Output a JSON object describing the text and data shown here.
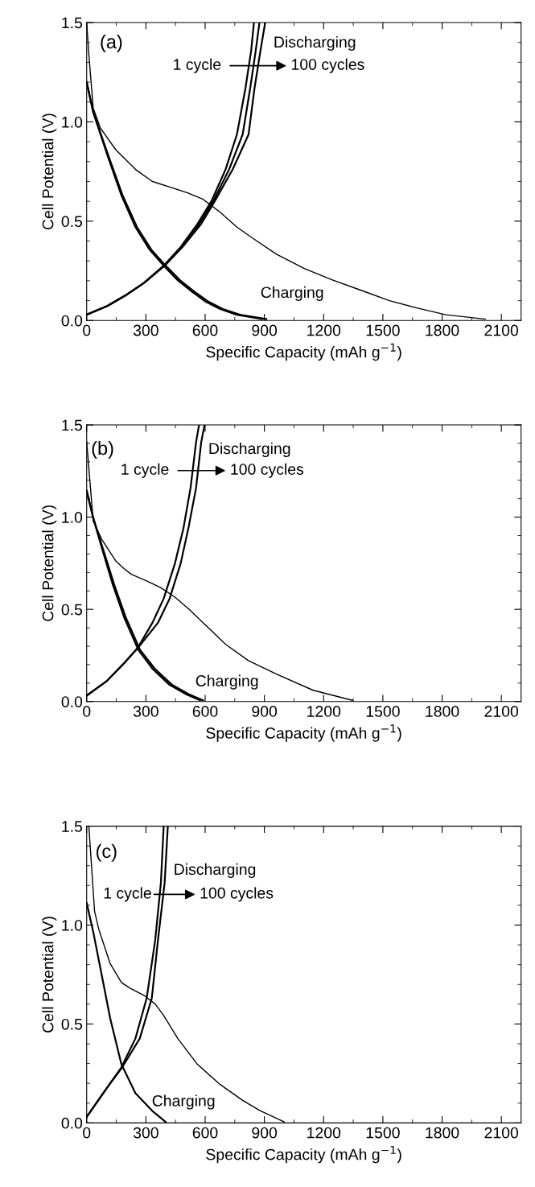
{
  "chart_data": [
    {
      "type": "line",
      "xlabel": "Specific Capacity (mAh g$^{−1}$)",
      "ylabel": "Cell Potential (V)",
      "annotations": [
        "(a)",
        "Discharging",
        "1 cycle",
        "100 cycles",
        "Charging"
      ],
      "xlim": [
        0,
        2200
      ],
      "ylim": [
        0,
        1.5
      ],
      "xticks": [
        0,
        300,
        600,
        900,
        1200,
        1500,
        1800,
        2100
      ],
      "yticks": [
        {
          "value": 0,
          "label": "0.0"
        },
        {
          "value": 0.5,
          "label": "0.5"
        },
        {
          "value": 1.0,
          "label": "1.0"
        },
        {
          "value": 1.5,
          "label": "1.5"
        }
      ],
      "grid": false,
      "marker": "none",
      "line_style": "solid",
      "series": [
        {
          "color": "#000000",
          "x": [
            0,
            11,
            33,
            69,
            147,
            254,
            333,
            433,
            511,
            590,
            676,
            761,
            847,
            961,
            1104,
            1247,
            1390,
            1533,
            1676,
            1819,
            2019
          ],
          "values": [
            1.5,
            1.34,
            1.07,
            0.97,
            0.86,
            0.755,
            0.7,
            0.668,
            0.643,
            0.61,
            0.545,
            0.47,
            0.41,
            0.334,
            0.261,
            0.203,
            0.152,
            0.1,
            0.062,
            0.029,
            0.007
          ]
        },
        {
          "color": "#000000",
          "x": [
            0,
            33,
            104,
            176,
            247,
            319,
            390,
            461,
            533,
            604,
            676,
            761,
            890
          ],
          "values": [
            1.2,
            1.05,
            0.835,
            0.63,
            0.47,
            0.356,
            0.276,
            0.203,
            0.145,
            0.094,
            0.058,
            0.029,
            0.007
          ]
        },
        {
          "color": "#000000",
          "x": [
            0,
            33,
            108,
            182,
            255,
            328,
            400,
            472,
            545,
            618,
            690,
            776,
            910
          ],
          "values": [
            1.2,
            1.05,
            0.835,
            0.63,
            0.47,
            0.356,
            0.276,
            0.203,
            0.145,
            0.094,
            0.058,
            0.029,
            0.007
          ]
        },
        {
          "color": "#000000",
          "x": [
            0,
            104,
            204,
            290,
            390,
            476,
            561,
            633,
            704,
            761,
            804,
            833,
            847
          ],
          "values": [
            0.029,
            0.073,
            0.131,
            0.189,
            0.276,
            0.37,
            0.486,
            0.603,
            0.762,
            0.937,
            1.169,
            1.358,
            1.5
          ]
        },
        {
          "color": "#000000",
          "x": [
            0,
            104,
            204,
            290,
            392,
            480,
            570,
            642,
            722,
            790,
            828,
            856,
            875
          ],
          "values": [
            0.029,
            0.073,
            0.131,
            0.189,
            0.276,
            0.37,
            0.486,
            0.603,
            0.762,
            0.937,
            1.169,
            1.358,
            1.5
          ]
        },
        {
          "color": "#000000",
          "x": [
            0,
            104,
            204,
            290,
            395,
            485,
            580,
            650,
            740,
            820,
            850,
            880,
            904
          ],
          "values": [
            0.029,
            0.073,
            0.131,
            0.189,
            0.276,
            0.37,
            0.486,
            0.603,
            0.762,
            0.937,
            1.169,
            1.358,
            1.5
          ]
        }
      ]
    },
    {
      "type": "line",
      "xlabel": "Specific Capacity (mAh g$^{−1}$)",
      "ylabel": "Cell Potential (V)",
      "annotations": [
        "(b)",
        "Discharging",
        "1 cycle",
        "100 cycles",
        "Charging"
      ],
      "xlim": [
        0,
        2200
      ],
      "ylim": [
        0,
        1.5
      ],
      "xticks": [
        0,
        300,
        600,
        900,
        1200,
        1500,
        1800,
        2100
      ],
      "yticks": [
        {
          "value": 0,
          "label": "0.0"
        },
        {
          "value": 0.5,
          "label": "0.5"
        },
        {
          "value": 1.0,
          "label": "1.0"
        },
        {
          "value": 1.5,
          "label": "1.5"
        }
      ],
      "grid": false,
      "marker": "none",
      "line_style": "solid",
      "series": [
        {
          "color": "#000000",
          "x": [
            0,
            33,
            76,
            147,
            190,
            226,
            304,
            376,
            447,
            519,
            590,
            704,
            819,
            961,
            1147,
            1347
          ],
          "values": [
            1.41,
            0.98,
            0.88,
            0.763,
            0.72,
            0.69,
            0.654,
            0.617,
            0.566,
            0.5,
            0.427,
            0.31,
            0.222,
            0.149,
            0.061,
            0.006
          ]
        },
        {
          "color": "#000000",
          "x": [
            0,
            33,
            76,
            133,
            190,
            261,
            333,
            419,
            504,
            575
          ],
          "values": [
            1.143,
            0.997,
            0.836,
            0.632,
            0.456,
            0.281,
            0.178,
            0.091,
            0.039,
            0.006
          ]
        },
        {
          "color": "#000000",
          "x": [
            0,
            33,
            80,
            140,
            198,
            270,
            345,
            432,
            518,
            590
          ],
          "values": [
            1.143,
            0.997,
            0.836,
            0.632,
            0.456,
            0.281,
            0.178,
            0.091,
            0.039,
            0.006
          ]
        },
        {
          "color": "#000000",
          "x": [
            0,
            104,
            190,
            261,
            333,
            390,
            447,
            490,
            526,
            554,
            569
          ],
          "values": [
            0.032,
            0.113,
            0.208,
            0.295,
            0.427,
            0.558,
            0.749,
            0.939,
            1.158,
            1.406,
            1.5
          ]
        },
        {
          "color": "#000000",
          "x": [
            0,
            104,
            190,
            263,
            361,
            420,
            476,
            515,
            554,
            580,
            597
          ],
          "values": [
            0.032,
            0.113,
            0.208,
            0.295,
            0.427,
            0.558,
            0.749,
            0.939,
            1.158,
            1.406,
            1.5
          ]
        }
      ]
    },
    {
      "type": "line",
      "xlabel": "Specific Capacity (mAh g$^{−1}$)",
      "ylabel": "Cell Potential (V)",
      "annotations": [
        "(c)",
        "Discharging",
        "1 cycle",
        "100 cycles",
        "Charging"
      ],
      "xlim": [
        0,
        2200
      ],
      "ylim": [
        0,
        1.5
      ],
      "xticks": [
        0,
        300,
        600,
        900,
        1200,
        1500,
        1800,
        2100
      ],
      "yticks": [
        {
          "value": 0,
          "label": "0.0"
        },
        {
          "value": 0.5,
          "label": "0.5"
        },
        {
          "value": 1.0,
          "label": "1.0"
        },
        {
          "value": 1.5,
          "label": "1.5"
        }
      ],
      "grid": false,
      "marker": "none",
      "line_style": "solid",
      "series": [
        {
          "color": "#000000",
          "x": [
            11,
            40,
            61,
            119,
            176,
            219,
            290,
            347,
            390,
            461,
            561,
            676,
            790,
            876,
            1000
          ],
          "values": [
            1.5,
            1.07,
            0.98,
            0.805,
            0.71,
            0.681,
            0.645,
            0.601,
            0.543,
            0.427,
            0.296,
            0.194,
            0.114,
            0.063,
            0.005
          ]
        },
        {
          "color": "#000000",
          "x": [
            0,
            33,
            76,
            119,
            176,
            247,
            333,
            400
          ],
          "values": [
            1.112,
            0.967,
            0.749,
            0.529,
            0.296,
            0.15,
            0.06,
            0.005
          ]
        },
        {
          "color": "#000000",
          "x": [
            0,
            104,
            176,
            247,
            304,
            347,
            376,
            390
          ],
          "values": [
            0.03,
            0.179,
            0.281,
            0.427,
            0.631,
            0.923,
            1.215,
            1.5
          ]
        },
        {
          "color": "#000000",
          "x": [
            0,
            104,
            180,
            269,
            330,
            361,
            395,
            411
          ],
          "values": [
            0.03,
            0.179,
            0.281,
            0.427,
            0.631,
            0.923,
            1.215,
            1.5
          ]
        }
      ]
    }
  ]
}
